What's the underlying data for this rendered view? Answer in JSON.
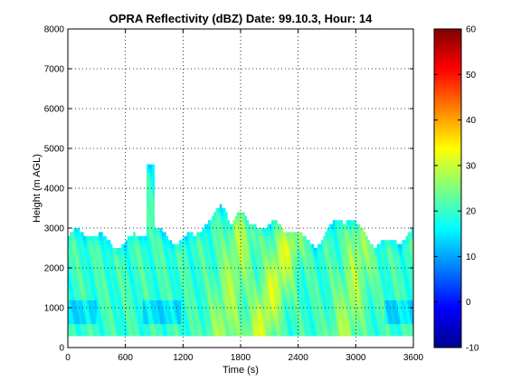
{
  "chart_data": {
    "type": "heatmap",
    "title": "OPRA Reflectivity (dBZ)  Date: 99.10.3, Hour: 14",
    "xlabel": "Time (s)",
    "ylabel": "Height (m AGL)",
    "xlim": [
      0,
      3600
    ],
    "ylim": [
      0,
      8000
    ],
    "x_ticks": [
      "0",
      "600",
      "1200",
      "1800",
      "2400",
      "3000",
      "3600"
    ],
    "y_ticks": [
      "0",
      "1000",
      "2000",
      "3000",
      "4000",
      "5000",
      "6000",
      "7000",
      "8000"
    ],
    "grid": true,
    "colorbar": {
      "colormap": "jet",
      "range": [
        -10,
        60
      ],
      "ticks": [
        "-10",
        "0",
        "10",
        "20",
        "30",
        "40",
        "50",
        "60"
      ]
    },
    "echo_region": {
      "x_range": [
        0,
        3600
      ],
      "base_height": 300,
      "typical_top": [
        2500,
        3000
      ],
      "max_top": 4600,
      "max_top_time": 860,
      "dbz_range": [
        12,
        33
      ],
      "peak_dbz_times": [
        1580,
        1950,
        2850
      ],
      "low_dbz_layer": [
        600,
        1200
      ]
    }
  }
}
